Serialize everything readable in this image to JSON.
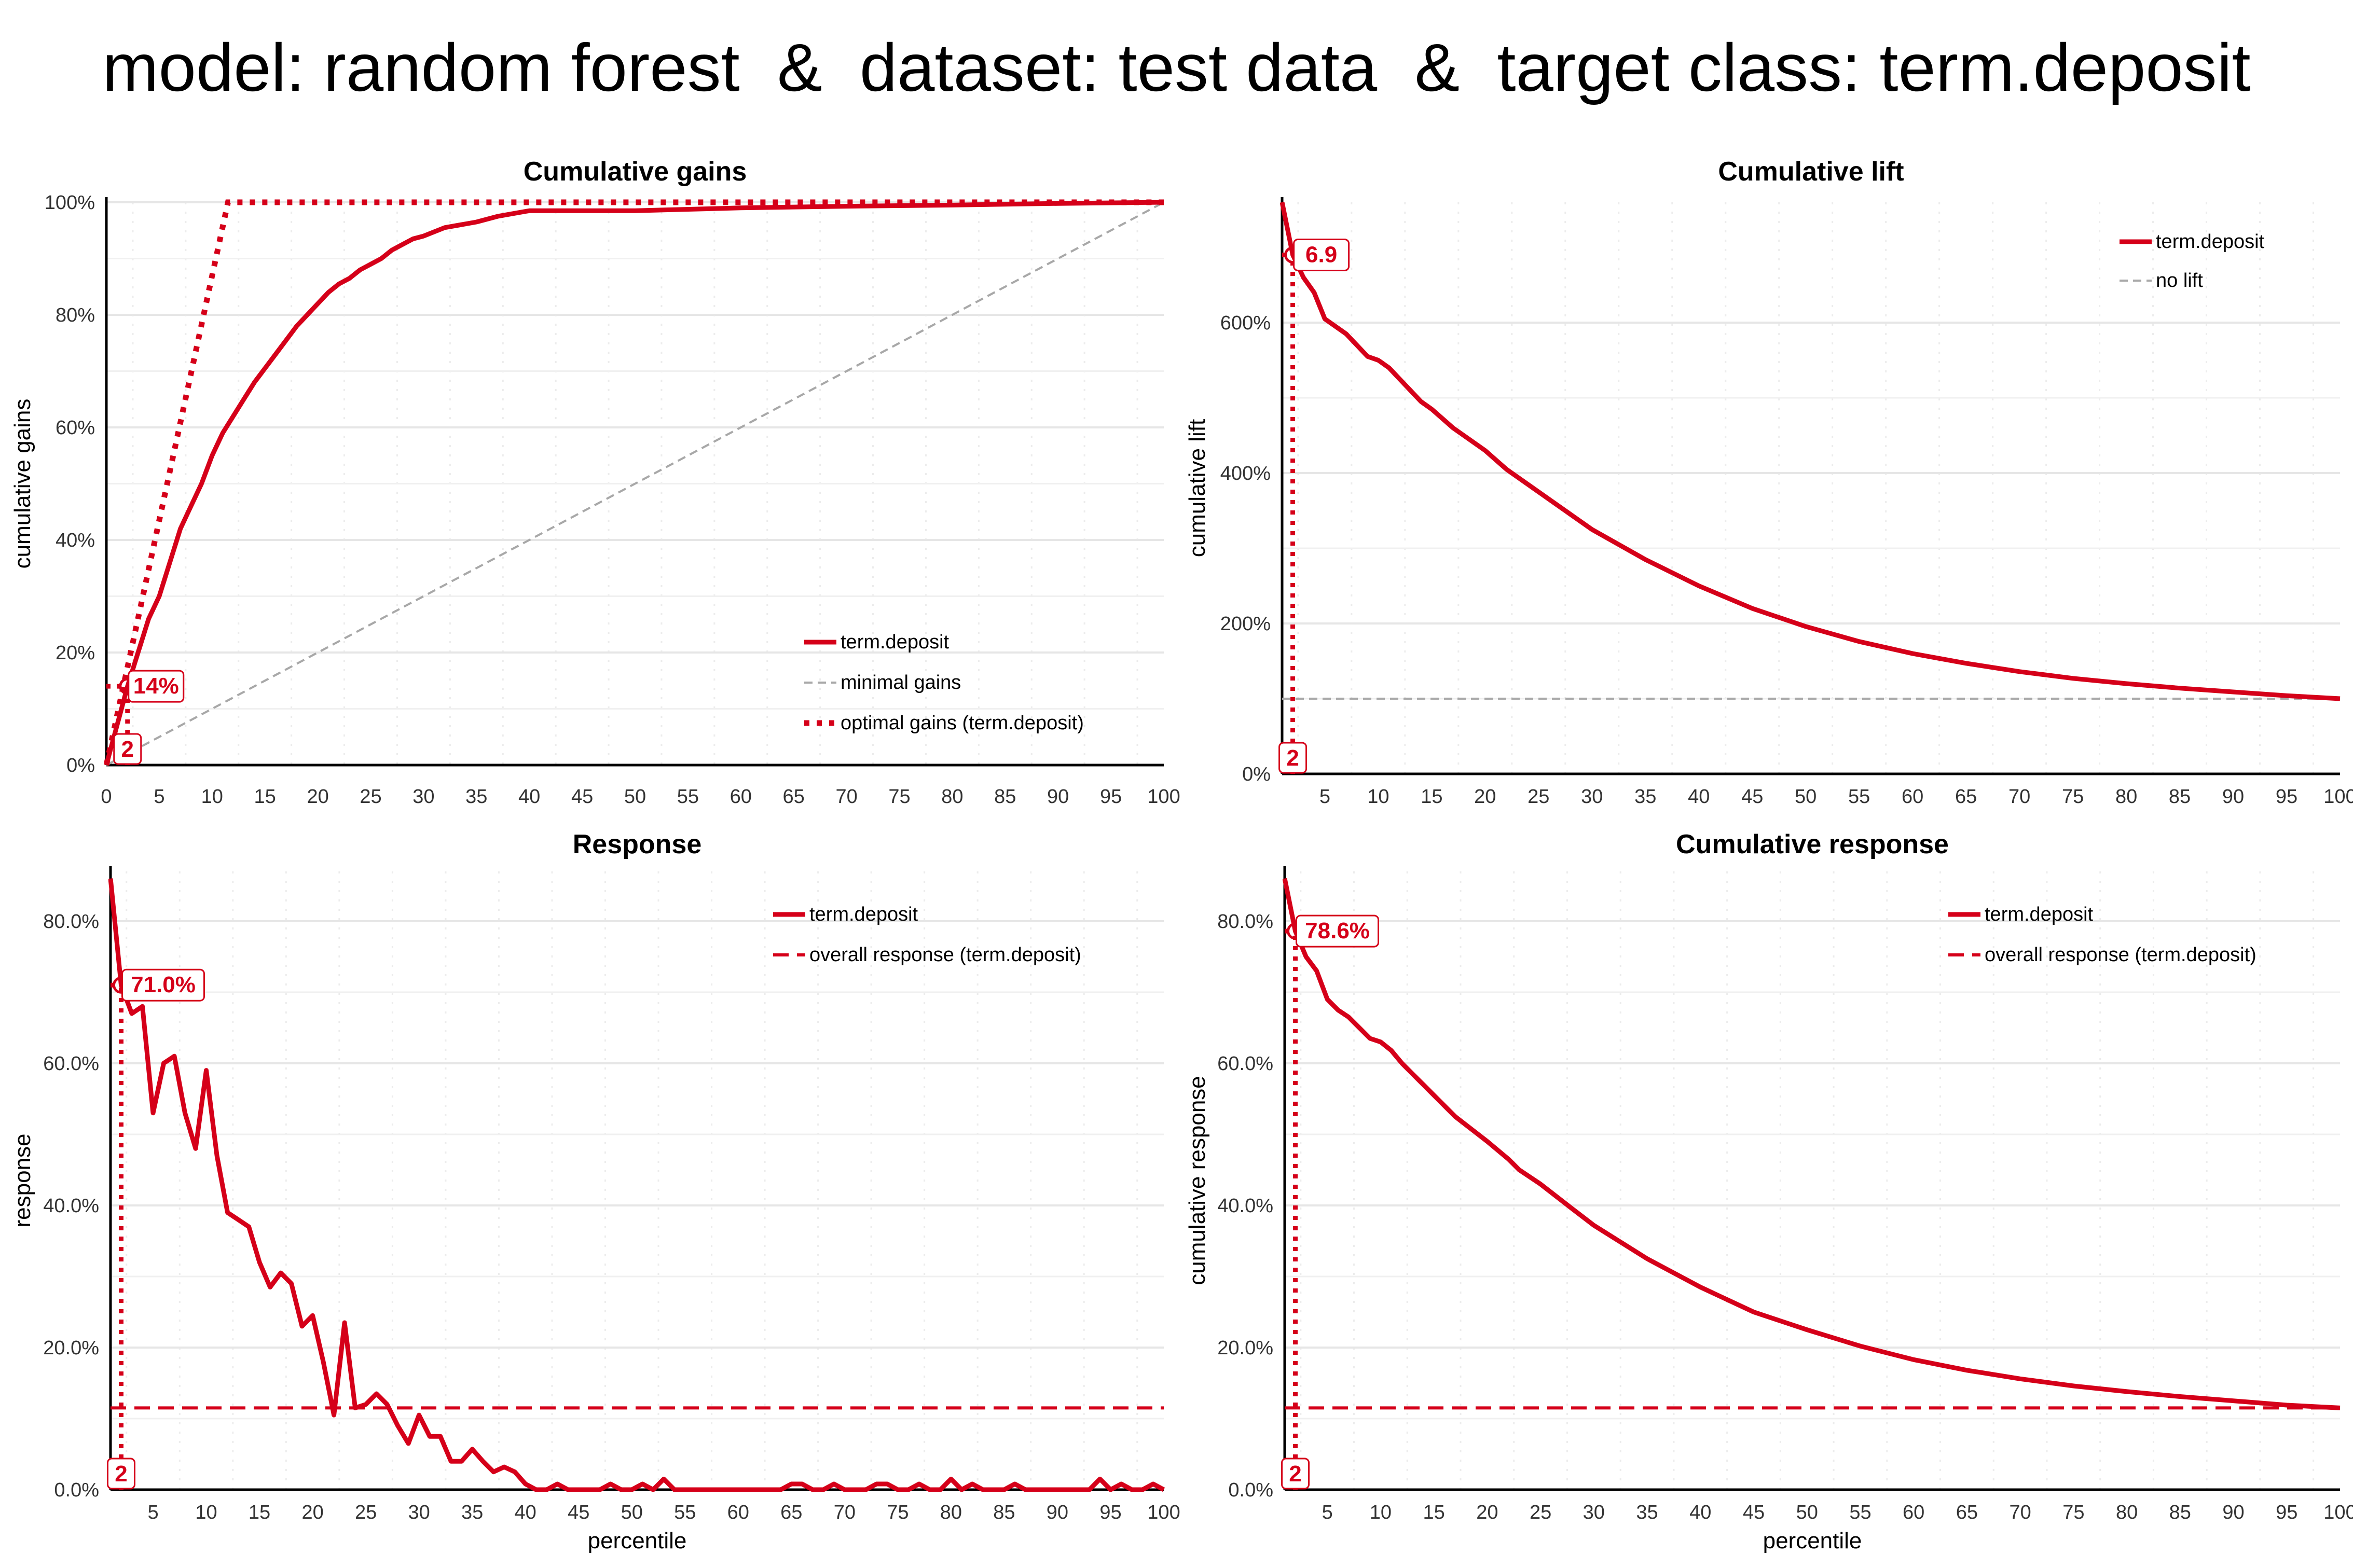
{
  "title": "model: random forest  &  dataset: test data  &  target class: term.deposit",
  "colors": {
    "main": "#d50019",
    "reference": "#a8a8a8",
    "grid": "#e6e6e6",
    "axis": "#000000"
  },
  "chart_data": [
    {
      "type": "line",
      "title": "Cumulative gains",
      "xlabel": "",
      "ylabel": "cumulative gains",
      "xlim": [
        0,
        100
      ],
      "ylim": [
        0,
        1
      ],
      "x_ticks": [
        "0",
        "5",
        "10",
        "15",
        "20",
        "25",
        "30",
        "35",
        "40",
        "45",
        "50",
        "55",
        "60",
        "65",
        "70",
        "75",
        "80",
        "85",
        "90",
        "95",
        "100"
      ],
      "y_ticks": [
        {
          "v": 0,
          "label": "0%"
        },
        {
          "v": 0.2,
          "label": "20%"
        },
        {
          "v": 0.4,
          "label": "40%"
        },
        {
          "v": 0.6,
          "label": "60%"
        },
        {
          "v": 0.8,
          "label": "80%"
        },
        {
          "v": 1,
          "label": "100%"
        }
      ],
      "grid": true,
      "legend_position": "bottom-right",
      "series": [
        {
          "name": "term.deposit",
          "style": "solid",
          "x": [
            0,
            1,
            2,
            3,
            4,
            5,
            6,
            7,
            8,
            9,
            10,
            11,
            12,
            13,
            14,
            15,
            16,
            17,
            18,
            19,
            20,
            21,
            22,
            23,
            24,
            25,
            26,
            27,
            28,
            29,
            30,
            32,
            35,
            37,
            40,
            45,
            50,
            60,
            70,
            80,
            90,
            100
          ],
          "y": [
            0,
            0.07,
            0.14,
            0.2,
            0.26,
            0.3,
            0.36,
            0.42,
            0.46,
            0.5,
            0.55,
            0.59,
            0.62,
            0.65,
            0.68,
            0.705,
            0.73,
            0.755,
            0.78,
            0.8,
            0.82,
            0.84,
            0.855,
            0.865,
            0.88,
            0.89,
            0.9,
            0.915,
            0.925,
            0.935,
            0.94,
            0.955,
            0.965,
            0.975,
            0.985,
            0.985,
            0.985,
            0.99,
            0.993,
            0.995,
            0.998,
            1.0
          ]
        },
        {
          "name": "minimal gains",
          "style": "dashed",
          "x": [
            0,
            100
          ],
          "y": [
            0,
            1
          ]
        },
        {
          "name": "optimal gains (term.deposit)",
          "style": "dotted",
          "x": [
            0,
            11.5,
            100
          ],
          "y": [
            0,
            1,
            1
          ]
        }
      ],
      "annotation": {
        "x": 2,
        "y": 0.14,
        "label": "14%",
        "x_label": "2"
      }
    },
    {
      "type": "line",
      "title": "Cumulative lift",
      "xlabel": "",
      "ylabel": "cumulative lift",
      "xlim": [
        1,
        100
      ],
      "ylim": [
        0,
        7.6
      ],
      "x_ticks": [
        "5",
        "10",
        "15",
        "20",
        "25",
        "30",
        "35",
        "40",
        "45",
        "50",
        "55",
        "60",
        "65",
        "70",
        "75",
        "80",
        "85",
        "90",
        "95",
        "100"
      ],
      "y_ticks": [
        {
          "v": 0,
          "label": "0%"
        },
        {
          "v": 2,
          "label": "200%"
        },
        {
          "v": 4,
          "label": "400%"
        },
        {
          "v": 6,
          "label": "600%"
        }
      ],
      "grid": true,
      "legend_position": "top-right",
      "series": [
        {
          "name": "term.deposit",
          "style": "solid",
          "x": [
            1,
            2,
            3,
            4,
            5,
            6,
            7,
            8,
            9,
            10,
            11,
            12,
            13,
            14,
            15,
            17,
            20,
            22,
            23,
            25,
            28,
            30,
            35,
            40,
            45,
            50,
            55,
            60,
            65,
            70,
            75,
            80,
            85,
            90,
            95,
            100
          ],
          "y": [
            7.6,
            6.9,
            6.6,
            6.4,
            6.05,
            5.95,
            5.85,
            5.7,
            5.55,
            5.5,
            5.4,
            5.25,
            5.1,
            4.95,
            4.85,
            4.6,
            4.3,
            4.05,
            3.95,
            3.75,
            3.45,
            3.25,
            2.85,
            2.5,
            2.2,
            1.96,
            1.76,
            1.6,
            1.47,
            1.36,
            1.27,
            1.2,
            1.14,
            1.09,
            1.04,
            1.0
          ]
        },
        {
          "name": "no lift",
          "style": "dashed",
          "x": [
            1,
            100
          ],
          "y": [
            1,
            1
          ]
        }
      ],
      "annotation": {
        "x": 2,
        "y": 6.9,
        "label": "6.9",
        "x_label": "2"
      }
    },
    {
      "type": "line",
      "title": "Response",
      "xlabel": "percentile",
      "ylabel": "response",
      "xlim": [
        1,
        100
      ],
      "ylim": [
        0,
        0.87
      ],
      "x_ticks": [
        "5",
        "10",
        "15",
        "20",
        "25",
        "30",
        "35",
        "40",
        "45",
        "50",
        "55",
        "60",
        "65",
        "70",
        "75",
        "80",
        "85",
        "90",
        "95",
        "100"
      ],
      "y_ticks": [
        {
          "v": 0,
          "label": "0.0%"
        },
        {
          "v": 0.2,
          "label": "20.0%"
        },
        {
          "v": 0.4,
          "label": "40.0%"
        },
        {
          "v": 0.6,
          "label": "60.0%"
        },
        {
          "v": 0.8,
          "label": "80.0%"
        }
      ],
      "grid": true,
      "legend_position": "top-right",
      "series": [
        {
          "name": "term.deposit",
          "style": "solid",
          "x": [
            1,
            2,
            3,
            4,
            5,
            6,
            7,
            8,
            9,
            10,
            11,
            12,
            13,
            14,
            15,
            16,
            17,
            18,
            19,
            20,
            21,
            22,
            23,
            24,
            25,
            26,
            27,
            28,
            29,
            30,
            31,
            32,
            33,
            34,
            35,
            36,
            37,
            38,
            39,
            40,
            41,
            42,
            43,
            44,
            45,
            46,
            47,
            48,
            49,
            50,
            51,
            52,
            53,
            54,
            55,
            56,
            57,
            58,
            59,
            60,
            61,
            62,
            63,
            64,
            65,
            66,
            67,
            68,
            69,
            70,
            71,
            72,
            73,
            74,
            75,
            76,
            77,
            78,
            79,
            80,
            81,
            82,
            83,
            84,
            85,
            86,
            87,
            88,
            89,
            90,
            91,
            92,
            93,
            94,
            95,
            96,
            97,
            98,
            99,
            100
          ],
          "y": [
            0.86,
            0.71,
            0.67,
            0.68,
            0.53,
            0.6,
            0.61,
            0.53,
            0.48,
            0.59,
            0.47,
            0.39,
            0.38,
            0.37,
            0.32,
            0.285,
            0.305,
            0.29,
            0.23,
            0.245,
            0.18,
            0.105,
            0.235,
            0.115,
            0.12,
            0.135,
            0.12,
            0.09,
            0.065,
            0.105,
            0.075,
            0.075,
            0.04,
            0.04,
            0.057,
            0.04,
            0.025,
            0.032,
            0.025,
            0.008,
            0,
            0,
            0.008,
            0,
            0,
            0,
            0,
            0.008,
            0,
            0,
            0.008,
            0,
            0.015,
            0,
            0,
            0,
            0,
            0,
            0,
            0,
            0,
            0,
            0,
            0,
            0.008,
            0.008,
            0,
            0,
            0.008,
            0,
            0,
            0,
            0.008,
            0.008,
            0,
            0,
            0.008,
            0,
            0,
            0.015,
            0,
            0.008,
            0,
            0,
            0,
            0.008,
            0,
            0,
            0,
            0,
            0,
            0,
            0,
            0.015,
            0,
            0.008,
            0,
            0,
            0.008,
            0
          ]
        },
        {
          "name": "overall response (term.deposit)",
          "style": "dashed",
          "x": [
            1,
            100
          ],
          "y": [
            0.115,
            0.115
          ]
        }
      ],
      "annotation": {
        "x": 2,
        "y": 0.71,
        "label": "71.0%",
        "x_label": "2"
      }
    },
    {
      "type": "line",
      "title": "Cumulative response",
      "xlabel": "percentile",
      "ylabel": "cumulative response",
      "xlim": [
        1,
        100
      ],
      "ylim": [
        0,
        0.87
      ],
      "x_ticks": [
        "5",
        "10",
        "15",
        "20",
        "25",
        "30",
        "35",
        "40",
        "45",
        "50",
        "55",
        "60",
        "65",
        "70",
        "75",
        "80",
        "85",
        "90",
        "95",
        "100"
      ],
      "y_ticks": [
        {
          "v": 0,
          "label": "0.0%"
        },
        {
          "v": 0.2,
          "label": "20.0%"
        },
        {
          "v": 0.4,
          "label": "40.0%"
        },
        {
          "v": 0.6,
          "label": "60.0%"
        },
        {
          "v": 0.8,
          "label": "80.0%"
        }
      ],
      "grid": true,
      "legend_position": "top-right",
      "series": [
        {
          "name": "term.deposit",
          "style": "solid",
          "x": [
            1,
            2,
            3,
            4,
            5,
            6,
            7,
            8,
            9,
            10,
            11,
            12,
            13,
            14,
            15,
            17,
            20,
            22,
            23,
            25,
            28,
            30,
            35,
            40,
            45,
            50,
            55,
            60,
            65,
            70,
            75,
            80,
            85,
            90,
            95,
            100
          ],
          "y": [
            0.86,
            0.786,
            0.75,
            0.73,
            0.69,
            0.675,
            0.665,
            0.65,
            0.635,
            0.63,
            0.618,
            0.6,
            0.585,
            0.57,
            0.555,
            0.525,
            0.49,
            0.465,
            0.45,
            0.43,
            0.395,
            0.372,
            0.325,
            0.285,
            0.25,
            0.225,
            0.202,
            0.183,
            0.168,
            0.156,
            0.146,
            0.138,
            0.131,
            0.125,
            0.119,
            0.115
          ]
        },
        {
          "name": "overall response (term.deposit)",
          "style": "dashed",
          "x": [
            1,
            100
          ],
          "y": [
            0.115,
            0.115
          ]
        }
      ],
      "annotation": {
        "x": 2,
        "y": 0.786,
        "label": "78.6%",
        "x_label": "2"
      }
    }
  ]
}
